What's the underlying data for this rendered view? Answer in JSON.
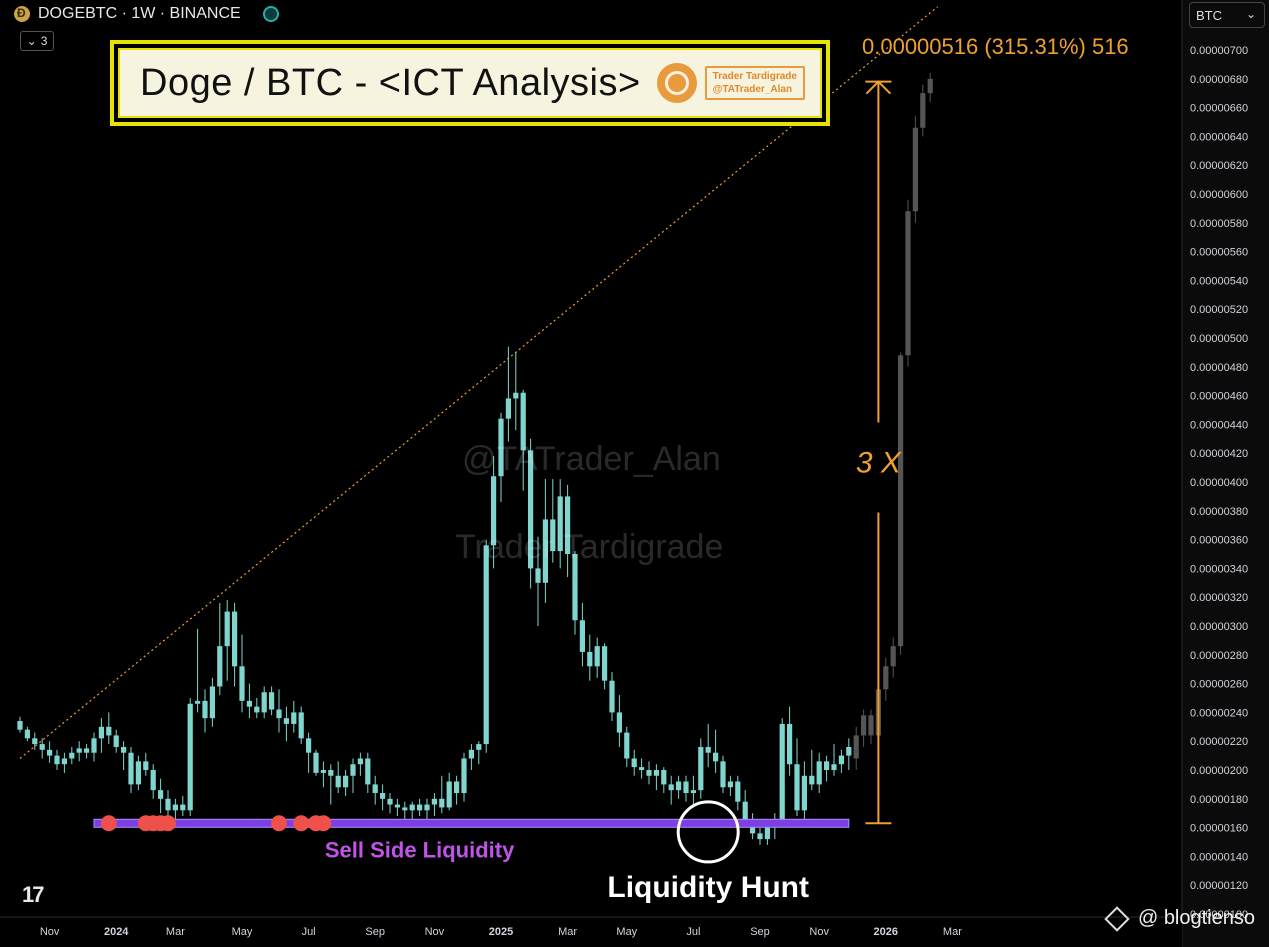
{
  "header": {
    "symbol": "DOGEBTC · 1W · BINANCE",
    "indicator_count": "3",
    "currency": "BTC",
    "icons": [
      "dogecoin-icon",
      "live-icon",
      "chevron-down-icon",
      "tradingview-logo-icon",
      "binance-icon"
    ]
  },
  "banner": {
    "title": "Doge / BTC - <ICT Analysis>",
    "logo_line1": "Trader Tardigrade",
    "logo_line2": "@TATrader_Alan"
  },
  "watermarks": [
    "@TATrader_Alan",
    "Trader Tardigrade"
  ],
  "credit": "@ blogtienso",
  "colors": {
    "bullish": "#7fd6cf",
    "projection": "#555555",
    "trendline": "#f0a030",
    "liquidity_zone": "#7b3fe4",
    "sweep_marker": "#f0504a",
    "annotation_text": "#c154e8",
    "measure": "#f0a030"
  },
  "chart_data": {
    "type": "candlestick",
    "y_unit": "BTC",
    "ylim": [
      1e-06,
      7.1e-06
    ],
    "y_ticks": [
      "0.00000700",
      "0.00000680",
      "0.00000660",
      "0.00000640",
      "0.00000620",
      "0.00000600",
      "0.00000580",
      "0.00000560",
      "0.00000540",
      "0.00000520",
      "0.00000500",
      "0.00000480",
      "0.00000460",
      "0.00000440",
      "0.00000420",
      "0.00000400",
      "0.00000380",
      "0.00000360",
      "0.00000340",
      "0.00000320",
      "0.00000300",
      "0.00000280",
      "0.00000260",
      "0.00000240",
      "0.00000220",
      "0.00000200",
      "0.00000180",
      "0.00000160",
      "0.00000140",
      "0.00000120",
      "0.00000100"
    ],
    "x_ticks": [
      {
        "label": "Nov",
        "week": 4,
        "bold": false
      },
      {
        "label": "2024",
        "week": 13,
        "bold": true
      },
      {
        "label": "Mar",
        "week": 21,
        "bold": false
      },
      {
        "label": "May",
        "week": 30,
        "bold": false
      },
      {
        "label": "Jul",
        "week": 39,
        "bold": false
      },
      {
        "label": "Sep",
        "week": 48,
        "bold": false
      },
      {
        "label": "Nov",
        "week": 56,
        "bold": false
      },
      {
        "label": "2025",
        "week": 65,
        "bold": true
      },
      {
        "label": "Mar",
        "week": 74,
        "bold": false
      },
      {
        "label": "May",
        "week": 82,
        "bold": false
      },
      {
        "label": "Jul",
        "week": 91,
        "bold": false
      },
      {
        "label": "Sep",
        "week": 100,
        "bold": false
      },
      {
        "label": "Nov",
        "week": 108,
        "bold": false
      },
      {
        "label": "2026",
        "week": 117,
        "bold": true
      },
      {
        "label": "Mar",
        "week": 126,
        "bold": false
      }
    ],
    "candles_ohlc_e8": [
      [
        234,
        237,
        226,
        228
      ],
      [
        228,
        230,
        220,
        222
      ],
      [
        222,
        226,
        214,
        218
      ],
      [
        218,
        222,
        208,
        214
      ],
      [
        214,
        220,
        205,
        210
      ],
      [
        210,
        214,
        200,
        204
      ],
      [
        204,
        212,
        198,
        208
      ],
      [
        208,
        216,
        204,
        212
      ],
      [
        212,
        220,
        206,
        215
      ],
      [
        215,
        218,
        208,
        212
      ],
      [
        212,
        226,
        206,
        222
      ],
      [
        222,
        236,
        212,
        230
      ],
      [
        230,
        240,
        218,
        224
      ],
      [
        224,
        228,
        212,
        216
      ],
      [
        216,
        220,
        200,
        212
      ],
      [
        212,
        216,
        184,
        190
      ],
      [
        190,
        210,
        186,
        206
      ],
      [
        206,
        212,
        196,
        200
      ],
      [
        200,
        204,
        180,
        186
      ],
      [
        186,
        194,
        170,
        180
      ],
      [
        180,
        186,
        168,
        172
      ],
      [
        172,
        180,
        166,
        176
      ],
      [
        176,
        182,
        168,
        172
      ],
      [
        172,
        250,
        168,
        246
      ],
      [
        246,
        298,
        240,
        248
      ],
      [
        248,
        256,
        226,
        236
      ],
      [
        236,
        264,
        230,
        258
      ],
      [
        258,
        316,
        252,
        286
      ],
      [
        286,
        318,
        262,
        310
      ],
      [
        310,
        316,
        258,
        272
      ],
      [
        272,
        294,
        240,
        248
      ],
      [
        248,
        260,
        236,
        244
      ],
      [
        244,
        250,
        236,
        240
      ],
      [
        240,
        258,
        236,
        254
      ],
      [
        254,
        258,
        238,
        242
      ],
      [
        242,
        256,
        226,
        236
      ],
      [
        236,
        244,
        220,
        232
      ],
      [
        232,
        248,
        226,
        240
      ],
      [
        240,
        244,
        218,
        222
      ],
      [
        222,
        226,
        198,
        212
      ],
      [
        212,
        214,
        196,
        198
      ],
      [
        198,
        206,
        188,
        200
      ],
      [
        200,
        204,
        176,
        196
      ],
      [
        196,
        206,
        184,
        188
      ],
      [
        188,
        200,
        182,
        196
      ],
      [
        196,
        208,
        184,
        204
      ],
      [
        204,
        212,
        196,
        208
      ],
      [
        208,
        212,
        184,
        190
      ],
      [
        190,
        196,
        176,
        184
      ],
      [
        184,
        190,
        172,
        180
      ],
      [
        180,
        184,
        170,
        176
      ],
      [
        176,
        180,
        168,
        174
      ],
      [
        174,
        178,
        166,
        172
      ],
      [
        172,
        178,
        166,
        176
      ],
      [
        176,
        180,
        168,
        172
      ],
      [
        172,
        180,
        166,
        176
      ],
      [
        176,
        184,
        168,
        180
      ],
      [
        180,
        196,
        170,
        174
      ],
      [
        174,
        198,
        172,
        192
      ],
      [
        192,
        196,
        176,
        184
      ],
      [
        184,
        212,
        178,
        208
      ],
      [
        208,
        218,
        200,
        214
      ],
      [
        214,
        220,
        204,
        218
      ],
      [
        218,
        360,
        212,
        356
      ],
      [
        356,
        418,
        340,
        404
      ],
      [
        404,
        448,
        386,
        444
      ],
      [
        444,
        494,
        428,
        458
      ],
      [
        458,
        490,
        436,
        462
      ],
      [
        462,
        464,
        394,
        422
      ],
      [
        422,
        430,
        326,
        340
      ],
      [
        340,
        362,
        300,
        330
      ],
      [
        330,
        402,
        316,
        374
      ],
      [
        374,
        402,
        344,
        352
      ],
      [
        352,
        402,
        340,
        390
      ],
      [
        390,
        398,
        334,
        350
      ],
      [
        350,
        352,
        294,
        304
      ],
      [
        304,
        316,
        272,
        282
      ],
      [
        282,
        294,
        262,
        272
      ],
      [
        272,
        292,
        264,
        286
      ],
      [
        286,
        288,
        256,
        262
      ],
      [
        262,
        268,
        234,
        240
      ],
      [
        240,
        252,
        216,
        226
      ],
      [
        226,
        230,
        202,
        208
      ],
      [
        208,
        214,
        196,
        202
      ],
      [
        202,
        208,
        194,
        200
      ],
      [
        200,
        206,
        190,
        196
      ],
      [
        196,
        204,
        186,
        200
      ],
      [
        200,
        202,
        184,
        190
      ],
      [
        190,
        196,
        176,
        186
      ],
      [
        186,
        196,
        180,
        192
      ],
      [
        192,
        196,
        178,
        184
      ],
      [
        184,
        196,
        174,
        186
      ],
      [
        186,
        222,
        180,
        216
      ],
      [
        216,
        232,
        202,
        212
      ],
      [
        212,
        228,
        198,
        206
      ],
      [
        206,
        210,
        184,
        188
      ],
      [
        188,
        196,
        182,
        192
      ],
      [
        192,
        196,
        172,
        178
      ],
      [
        178,
        186,
        160,
        166
      ],
      [
        166,
        170,
        152,
        156
      ],
      [
        156,
        160,
        148,
        152
      ],
      [
        152,
        164,
        148,
        160
      ],
      [
        160,
        170,
        152,
        166
      ],
      [
        166,
        236,
        160,
        232
      ],
      [
        232,
        244,
        196,
        204
      ],
      [
        204,
        222,
        168,
        172
      ],
      [
        172,
        206,
        166,
        196
      ],
      [
        196,
        214,
        186,
        190
      ],
      [
        190,
        212,
        184,
        206
      ],
      [
        206,
        210,
        192,
        200
      ],
      [
        200,
        218,
        196,
        204
      ],
      [
        204,
        214,
        198,
        210
      ],
      [
        210,
        222,
        200,
        216
      ]
    ],
    "projection_ohlc_e8": [
      [
        208,
        230,
        200,
        224
      ],
      [
        224,
        242,
        216,
        238
      ],
      [
        238,
        242,
        218,
        224
      ],
      [
        224,
        262,
        220,
        256
      ],
      [
        256,
        278,
        248,
        272
      ],
      [
        272,
        292,
        264,
        286
      ],
      [
        286,
        490,
        280,
        488
      ],
      [
        488,
        596,
        480,
        588
      ],
      [
        588,
        654,
        580,
        646
      ],
      [
        646,
        676,
        640,
        670
      ],
      [
        670,
        684,
        664,
        680
      ]
    ],
    "trendline": {
      "start": {
        "week": 0,
        "price": 2.08e-06
      },
      "end": {
        "week": 124,
        "price": 7.3e-06
      }
    },
    "liquidity_zone": {
      "price": 1.63e-06,
      "start_week": 10,
      "end_week": 112
    },
    "sweep_marker_weeks": [
      12,
      17,
      18,
      19,
      20,
      35,
      38,
      40,
      41
    ],
    "circle_marker": {
      "week": 93,
      "price": 1.57e-06
    },
    "measure": {
      "week": 116,
      "from_price": 1.63e-06,
      "to_price": 6.78e-06
    },
    "annotations": {
      "sell_side": "Sell Side Liquidity",
      "liquidity_hunt": "Liquidity Hunt",
      "multiplier": "3 X",
      "measure_label": "0.00000516 (315.31%) 516"
    }
  }
}
